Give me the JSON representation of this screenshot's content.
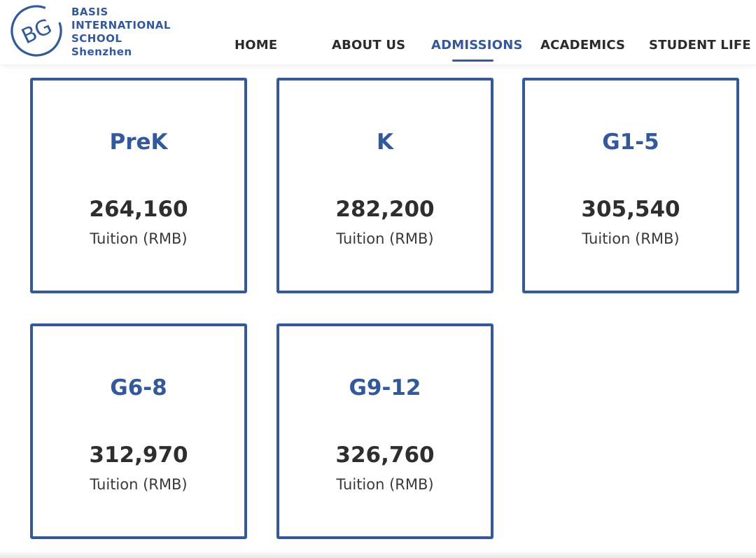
{
  "brand": {
    "logo_monogram": "BG",
    "lines": [
      "BASIS",
      "INTERNATIONAL",
      "SCHOOL",
      "Shenzhen"
    ],
    "color": "#34599a"
  },
  "nav": {
    "items": [
      {
        "label": "HOME",
        "active": false
      },
      {
        "label": "ABOUT US",
        "active": false
      },
      {
        "label": "ADMISSIONS",
        "active": true
      },
      {
        "label": "ACADEMICS",
        "active": false
      },
      {
        "label": "STUDENT LIFE",
        "active": false
      }
    ]
  },
  "tuition": {
    "cards": [
      {
        "grade": "PreK",
        "amount": "264,160",
        "caption": "Tuition (RMB)"
      },
      {
        "grade": "K",
        "amount": "282,200",
        "caption": "Tuition (RMB)"
      },
      {
        "grade": "G1-5",
        "amount": "305,540",
        "caption": "Tuition (RMB)"
      },
      {
        "grade": "G6-8",
        "amount": "312,970",
        "caption": "Tuition (RMB)"
      },
      {
        "grade": "G9-12",
        "amount": "326,760",
        "caption": "Tuition (RMB)"
      }
    ]
  },
  "colors": {
    "accent": "#34599a",
    "text_dark": "#2e2e2e",
    "background": "#ffffff"
  }
}
